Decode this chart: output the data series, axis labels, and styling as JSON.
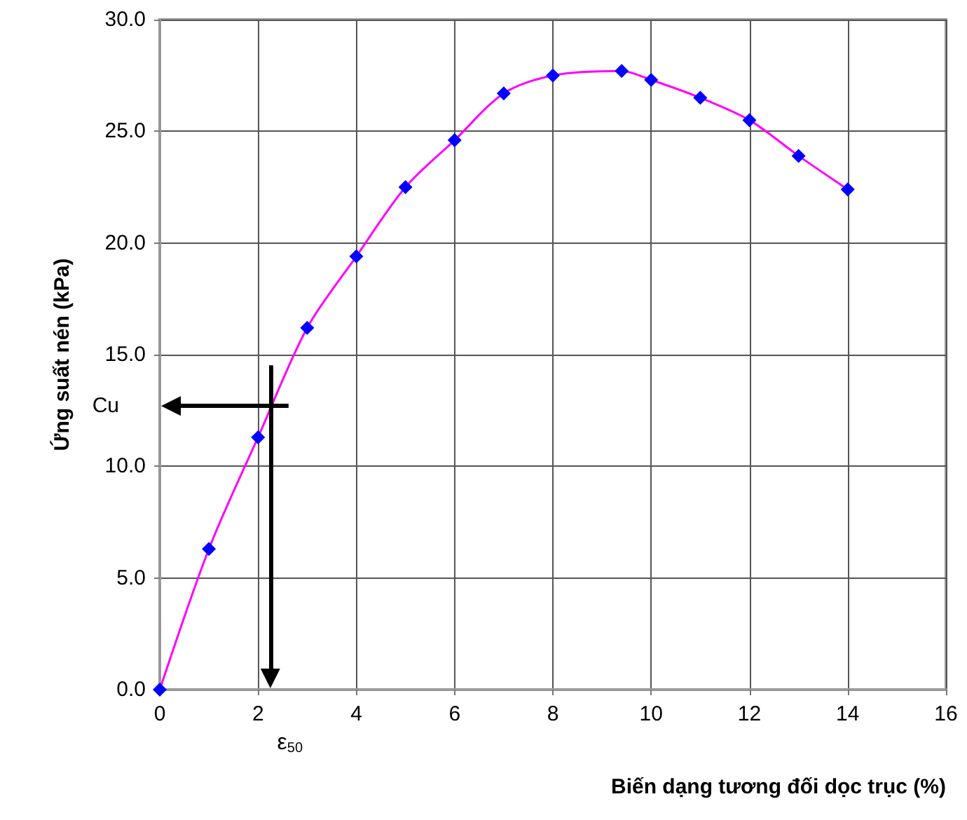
{
  "chart_data": {
    "type": "line",
    "xlabel": "Biến dạng tương đối dọc trục (%)",
    "ylabel": "Ứng suất nén (kPa)",
    "x": [
      0,
      1,
      2,
      3,
      4,
      5,
      6,
      7,
      8,
      9.4,
      10,
      11,
      12,
      13,
      14
    ],
    "series": [
      {
        "color": "#ff00ff",
        "colors": [
          "#0000ff",
          "#0000ff",
          "#0000ff",
          "#0000ff",
          "#0000ff",
          "#0000ff",
          "#0000ff",
          "#0000ff",
          "#0000ff",
          "#0000ff",
          "#0000ff",
          "#0000ff",
          "#0000ff",
          "#0000ff",
          "#0000ff"
        ],
        "values": [
          0,
          6.3,
          11.3,
          16.2,
          19.4,
          22.5,
          24.6,
          26.7,
          27.5,
          27.7,
          27.3,
          26.5,
          25.5,
          23.9,
          22.4
        ]
      }
    ],
    "xlim": [
      0,
      16
    ],
    "xticks": [
      0,
      2,
      4,
      6,
      8,
      10,
      12,
      14,
      16
    ],
    "ylim": [
      0,
      30
    ],
    "yticks": [
      {
        "value": 0,
        "label": "0.0"
      },
      {
        "value": 5,
        "label": "5.0"
      },
      {
        "value": 10,
        "label": "10.0"
      },
      {
        "value": 15,
        "label": "15.0"
      },
      {
        "value": 20,
        "label": "20.0"
      },
      {
        "value": 25,
        "label": "25.0"
      },
      {
        "value": 30,
        "label": "30.0"
      }
    ],
    "ref_lines": [
      {
        "axis": "y",
        "value": 12.7,
        "label": "Cu",
        "color": "#000000",
        "line_style": "solid"
      },
      {
        "axis": "x",
        "value": 2.25,
        "label": "ε$_{50}$",
        "color": "#000000",
        "line_style": "solid"
      }
    ],
    "grid": true,
    "marker": "diamond",
    "line_style": "solid"
  }
}
